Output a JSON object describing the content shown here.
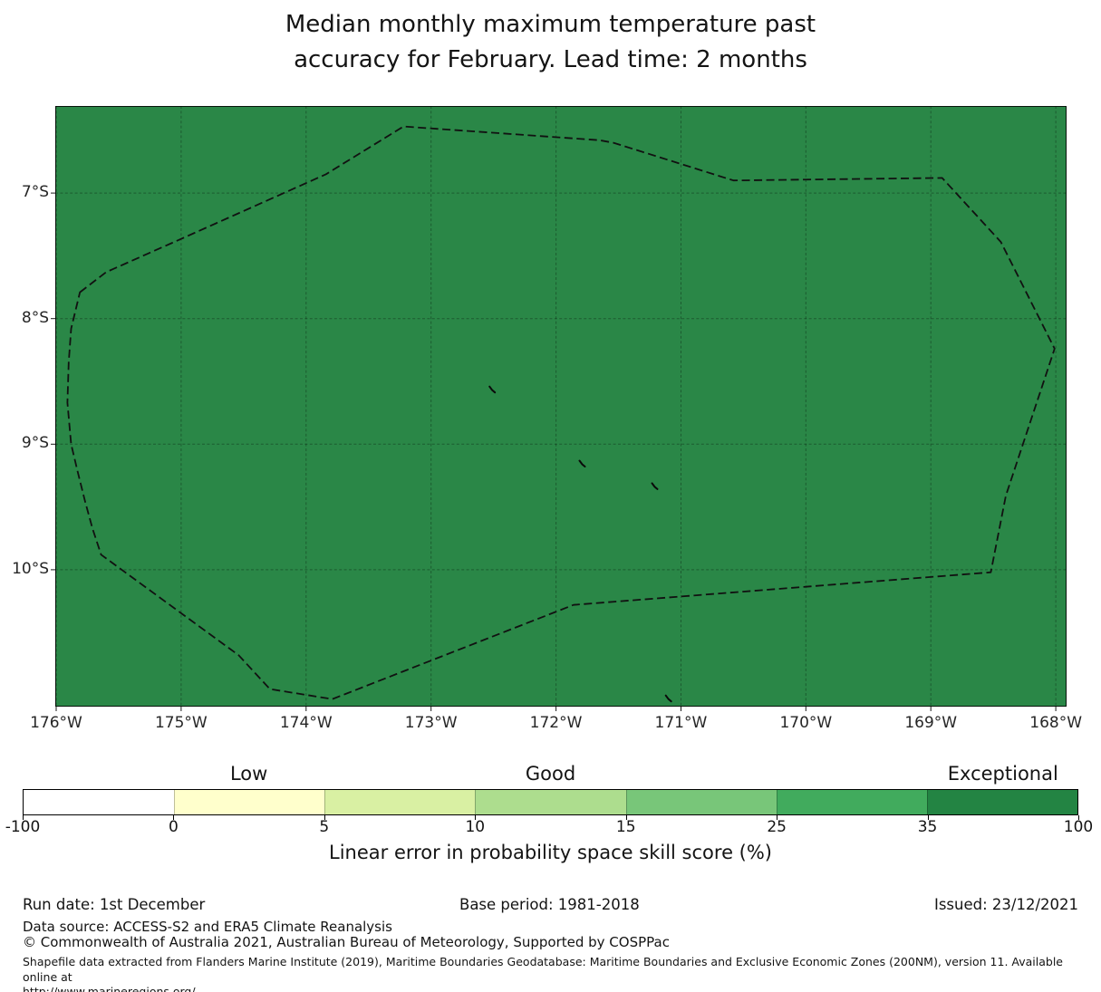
{
  "title": {
    "line1": "Median monthly maximum temperature past",
    "line2": "accuracy for February. Lead time: 2 months"
  },
  "chart_data": {
    "type": "heatmap",
    "description": "Filled map of LEPS skill score for median monthly maximum temperature; entire plotted region falls in the top (35-100, Exceptional) bin, with dashed EEZ boundary (Tuvalu) and small island marks overlaid.",
    "grid": true,
    "map_fill_color": "#2a8747",
    "field_value_bin": "35-100",
    "x_axis": {
      "range": [
        176.007,
        167.914
      ],
      "units": "degrees West",
      "ticks": [
        176,
        175,
        174,
        173,
        172,
        171,
        170,
        169,
        168
      ],
      "tick_labels": [
        "176°W",
        "175°W",
        "174°W",
        "173°W",
        "172°W",
        "171°W",
        "170°W",
        "169°W",
        "168°W"
      ]
    },
    "y_axis": {
      "range": [
        6.307,
        11.09
      ],
      "units": "degrees South",
      "ticks": [
        7,
        8,
        9,
        10
      ],
      "tick_labels": [
        "7°S",
        "8°S",
        "9°S",
        "10°S"
      ]
    },
    "eez_boundary_lonlat": [
      [
        175.81,
        7.79
      ],
      [
        175.6,
        7.63
      ],
      [
        175.01,
        7.37
      ],
      [
        173.84,
        6.85
      ],
      [
        173.22,
        6.47
      ],
      [
        171.65,
        6.58
      ],
      [
        171.54,
        6.6
      ],
      [
        170.58,
        6.9
      ],
      [
        168.91,
        6.88
      ],
      [
        168.44,
        7.39
      ],
      [
        168.01,
        8.24
      ],
      [
        168.4,
        9.41
      ],
      [
        168.52,
        10.02
      ],
      [
        171.86,
        10.28
      ],
      [
        173.79,
        11.03
      ],
      [
        174.29,
        10.95
      ],
      [
        174.54,
        10.68
      ],
      [
        175.64,
        9.88
      ],
      [
        175.71,
        9.67
      ],
      [
        175.77,
        9.45
      ],
      [
        175.83,
        9.21
      ],
      [
        175.88,
        9.0
      ],
      [
        175.91,
        8.67
      ],
      [
        175.9,
        8.35
      ],
      [
        175.88,
        8.08
      ]
    ],
    "island_markers_lonlat": [
      [
        172.51,
        8.57
      ],
      [
        171.79,
        9.16
      ],
      [
        171.21,
        9.34
      ],
      [
        171.1,
        11.03
      ]
    ],
    "colorbar": {
      "ticks": [
        -100,
        0,
        5,
        10,
        15,
        25,
        35,
        100
      ],
      "tick_labels": [
        "-100",
        "0",
        "5",
        "10",
        "15",
        "25",
        "35",
        "100"
      ],
      "segment_colors": [
        "#ffffff",
        "#ffffcc",
        "#d9f0a3",
        "#addd8e",
        "#78c679",
        "#41ab5d",
        "#238443"
      ],
      "region_labels": [
        {
          "text": "Low",
          "position_segment": 1
        },
        {
          "text": "Good",
          "position_segment": 3
        },
        {
          "text": "Exceptional",
          "position_segment": 6
        }
      ],
      "caption": "Linear error in probability space skill score (%)"
    }
  },
  "footer": {
    "run_date": "Run date: 1st December",
    "base_period": "Base period: 1981-2018",
    "issued": "Issued: 23/12/2021",
    "data_source": "Data source: ACCESS-S2 and ERA5 Climate Reanalysis",
    "copyright": "© Commonwealth of Australia 2021, Australian Bureau of Meteorology, Supported by COSPPac",
    "shapefile_note_line1": "Shapefile data extracted from Flanders Marine Institute (2019), Maritime Boundaries Geodatabase: Maritime Boundaries and Exclusive Economic Zones (200NM), version 11. Available online at",
    "shapefile_note_line2": "http://www.marineregions.org/."
  }
}
